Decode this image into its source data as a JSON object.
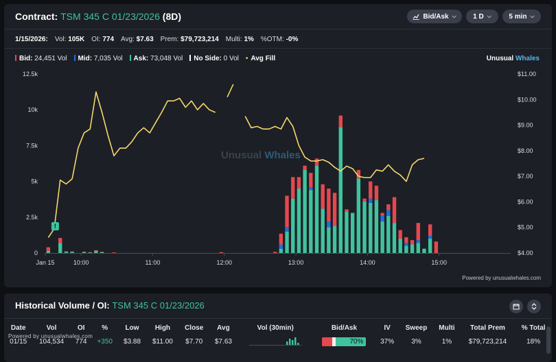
{
  "header": {
    "label": "Contract:",
    "contract": "TSM 345 C 01/23/2026",
    "dte": "(8D)",
    "controls": {
      "side": "Bid/Ask",
      "range": "1 D",
      "interval": "5 min"
    }
  },
  "stats": {
    "date": "1/15/2026:",
    "vol_label": "Vol:",
    "vol": "105K",
    "oi_label": "OI:",
    "oi": "774",
    "avg_label": "Avg:",
    "avg": "$7.63",
    "prem_label": "Prem:",
    "prem": "$79,723,214",
    "multi_label": "Multi:",
    "multi": "1%",
    "otm_label": "%OTM:",
    "otm": "-0%"
  },
  "legend": {
    "bid_label": "Bid:",
    "bid": "24,451 Vol",
    "mid_label": "Mid:",
    "mid": "7,035 Vol",
    "ask_label": "Ask:",
    "ask": "73,048 Vol",
    "noside_label": "No Side:",
    "noside": "0 Vol",
    "avgfill": "Avg Fill"
  },
  "brand": {
    "part1": "Unusual",
    "part2": "Whales",
    "watermark1": "Unusual",
    "watermark2": "Whales"
  },
  "powered_by": "Powered by unusualwhales.com",
  "colors": {
    "bid": "#e5484d",
    "mid": "#1f6fe0",
    "ask": "#3fc39e",
    "avg_fill": "#f5d76e",
    "accent": "#3fc39e"
  },
  "chart_data": {
    "type": "bar",
    "x_ticks": [
      "Jan 15",
      "10:00",
      "11:00",
      "12:00",
      "13:00",
      "14:00",
      "15:00"
    ],
    "y_left_ticks": [
      "12.5k",
      "10k",
      "7.5k",
      "5k",
      "2.5k",
      "0"
    ],
    "y_left_range": [
      0,
      12500
    ],
    "y_right_ticks": [
      "$11.00",
      "$10.00",
      "$9.00",
      "$8.00",
      "$7.00",
      "$6.00",
      "$5.00",
      "$4.00"
    ],
    "y_right_range": [
      4,
      11
    ],
    "session_start_hour": 9.5,
    "session_end_hour": 16,
    "interval_minutes": 5,
    "bars": [
      {
        "time": "09:30",
        "ask": 150,
        "mid": 0,
        "bid": 250
      },
      {
        "time": "09:40",
        "ask": 700,
        "mid": 0,
        "bid": 350
      },
      {
        "time": "09:45",
        "ask": 80,
        "mid": 0,
        "bid": 40
      },
      {
        "time": "09:50",
        "ask": 80,
        "mid": 0,
        "bid": 30
      },
      {
        "time": "10:00",
        "ask": 60,
        "mid": 0,
        "bid": 40
      },
      {
        "time": "10:05",
        "ask": 40,
        "mid": 0,
        "bid": 20
      },
      {
        "time": "10:10",
        "ask": 150,
        "mid": 0,
        "bid": 50
      },
      {
        "time": "10:15",
        "ask": 60,
        "mid": 0,
        "bid": 30
      },
      {
        "time": "10:25",
        "ask": 0,
        "mid": 0,
        "bid": 40
      },
      {
        "time": "11:55",
        "ask": 0,
        "mid": 0,
        "bid": 60
      },
      {
        "time": "12:40",
        "ask": 0,
        "mid": 0,
        "bid": 80
      },
      {
        "time": "12:45",
        "ask": 300,
        "mid": 300,
        "bid": 750
      },
      {
        "time": "12:50",
        "ask": 1500,
        "mid": 300,
        "bid": 2200
      },
      {
        "time": "12:55",
        "ask": 3800,
        "mid": 0,
        "bid": 1500
      },
      {
        "time": "13:00",
        "ask": 4500,
        "mid": 0,
        "bid": 800
      },
      {
        "time": "13:05",
        "ask": 5800,
        "mid": 0,
        "bid": 300
      },
      {
        "time": "13:10",
        "ask": 4400,
        "mid": 200,
        "bid": 1000
      },
      {
        "time": "13:15",
        "ask": 6100,
        "mid": 0,
        "bid": 500
      },
      {
        "time": "13:20",
        "ask": 3100,
        "mid": 0,
        "bid": 1700
      },
      {
        "time": "13:25",
        "ask": 1800,
        "mid": 400,
        "bid": 2300
      },
      {
        "time": "13:30",
        "ask": 1900,
        "mid": 0,
        "bid": 2300
      },
      {
        "time": "13:35",
        "ask": 8800,
        "mid": 0,
        "bid": 800
      },
      {
        "time": "13:40",
        "ask": 2900,
        "mid": 0,
        "bid": 150
      },
      {
        "time": "13:45",
        "ask": 2800,
        "mid": 0,
        "bid": 0
      },
      {
        "time": "13:50",
        "ask": 5200,
        "mid": 0,
        "bid": 600
      },
      {
        "time": "13:55",
        "ask": 3600,
        "mid": 0,
        "bid": 200
      },
      {
        "time": "14:00",
        "ask": 3500,
        "mid": 300,
        "bid": 1200
      },
      {
        "time": "14:05",
        "ask": 3700,
        "mid": 0,
        "bid": 1000
      },
      {
        "time": "14:10",
        "ask": 2200,
        "mid": 400,
        "bid": 200
      },
      {
        "time": "14:15",
        "ask": 2600,
        "mid": 400,
        "bid": 400
      },
      {
        "time": "14:20",
        "ask": 2100,
        "mid": 0,
        "bid": 1800
      },
      {
        "time": "14:25",
        "ask": 1000,
        "mid": 0,
        "bid": 600
      },
      {
        "time": "14:30",
        "ask": 500,
        "mid": 200,
        "bid": 400
      },
      {
        "time": "14:35",
        "ask": 600,
        "mid": 0,
        "bid": 300
      },
      {
        "time": "14:40",
        "ask": 700,
        "mid": 200,
        "bid": 1200
      },
      {
        "time": "14:45",
        "ask": 300,
        "mid": 0,
        "bid": 0
      },
      {
        "time": "14:50",
        "ask": 1000,
        "mid": 200,
        "bid": 800
      },
      {
        "time": "14:55",
        "ask": 0,
        "mid": 0,
        "bid": 800
      }
    ],
    "avg_fill_segments": [
      [
        {
          "time": "09:30",
          "price": 4.6
        },
        {
          "time": "09:35",
          "price": 4.95
        },
        {
          "time": "09:40",
          "price": 6.85
        },
        {
          "time": "09:45",
          "price": 6.7
        },
        {
          "time": "09:50",
          "price": 6.9
        },
        {
          "time": "09:55",
          "price": 8.1
        },
        {
          "time": "10:00",
          "price": 8.7
        },
        {
          "time": "10:05",
          "price": 8.85
        },
        {
          "time": "10:10",
          "price": 10.3
        },
        {
          "time": "10:15",
          "price": 9.5
        },
        {
          "time": "10:20",
          "price": 8.6
        },
        {
          "time": "10:25",
          "price": 7.8
        },
        {
          "time": "10:30",
          "price": 8.1
        },
        {
          "time": "10:35",
          "price": 8.1
        },
        {
          "time": "10:40",
          "price": 8.35
        },
        {
          "time": "10:45",
          "price": 8.7
        },
        {
          "time": "10:50",
          "price": 8.9
        },
        {
          "time": "10:55",
          "price": 8.7
        },
        {
          "time": "11:00",
          "price": 9.1
        },
        {
          "time": "11:05",
          "price": 9.5
        },
        {
          "time": "11:10",
          "price": 9.95
        },
        {
          "time": "11:15",
          "price": 9.95
        },
        {
          "time": "11:20",
          "price": 10.05
        },
        {
          "time": "11:25",
          "price": 9.7
        },
        {
          "time": "11:30",
          "price": 9.95
        },
        {
          "time": "11:35",
          "price": 9.6
        },
        {
          "time": "11:40",
          "price": 9.85
        },
        {
          "time": "11:45",
          "price": 9.6
        },
        {
          "time": "11:50",
          "price": 9.5
        }
      ],
      [
        {
          "time": "12:00",
          "price": 10.1
        },
        {
          "time": "12:05",
          "price": 10.6
        }
      ],
      [
        {
          "time": "12:15",
          "price": 9.35
        },
        {
          "time": "12:20",
          "price": 8.9
        },
        {
          "time": "12:25",
          "price": 8.95
        },
        {
          "time": "12:30",
          "price": 8.85
        },
        {
          "time": "12:35",
          "price": 8.85
        },
        {
          "time": "12:40",
          "price": 8.95
        },
        {
          "time": "12:45",
          "price": 8.85
        },
        {
          "time": "12:50",
          "price": 9.3
        },
        {
          "time": "12:55",
          "price": 8.95
        },
        {
          "time": "13:00",
          "price": 8.2
        },
        {
          "time": "13:05",
          "price": 7.75
        },
        {
          "time": "13:10",
          "price": 7.6
        },
        {
          "time": "13:15",
          "price": 7.6
        },
        {
          "time": "13:20",
          "price": 7.65
        },
        {
          "time": "13:25",
          "price": 7.55
        },
        {
          "time": "13:30",
          "price": 7.35
        },
        {
          "time": "13:35",
          "price": 7.2
        },
        {
          "time": "13:40",
          "price": 7.4
        },
        {
          "time": "13:45",
          "price": 7.3
        },
        {
          "time": "13:50",
          "price": 7.0
        },
        {
          "time": "13:55",
          "price": 6.95
        },
        {
          "time": "14:00",
          "price": 6.95
        },
        {
          "time": "14:05",
          "price": 7.25
        },
        {
          "time": "14:10",
          "price": 7.2
        },
        {
          "time": "14:15",
          "price": 7.45
        },
        {
          "time": "14:20",
          "price": 7.2
        },
        {
          "time": "14:25",
          "price": 7.05
        },
        {
          "time": "14:30",
          "price": 6.8
        },
        {
          "time": "14:35",
          "price": 7.45
        },
        {
          "time": "14:40",
          "price": 7.65
        },
        {
          "time": "14:45",
          "price": 7.7
        }
      ]
    ],
    "marker": {
      "time": "09:40",
      "symbol": "!"
    }
  },
  "history": {
    "title": "Historical Volume / OI:",
    "contract": "TSM 345 C 01/23/2026",
    "powered_small": "Powered by unusualwhales.com",
    "columns": [
      "Date",
      "Vol",
      "OI",
      "%",
      "Low",
      "High",
      "Close",
      "Avg",
      "Vol (30min)",
      "Bid/Ask",
      "IV",
      "Sweep",
      "Multi",
      "Total Prem",
      "% Total"
    ],
    "rows": [
      {
        "date": "01/15",
        "vol": "104,534",
        "oi": "774",
        "pct": "+350",
        "low": "$3.88",
        "high": "$11.00",
        "close": "$7.70",
        "avg": "$7.63",
        "bidask": "70%",
        "bid_frac": 0.23,
        "mid_frac": 0.07,
        "iv": "37%",
        "sweep": "3%",
        "multi": "1%",
        "total_prem": "$79,723,214",
        "pct_total": "18%"
      }
    ],
    "spark": [
      0,
      0,
      0,
      0,
      0,
      0,
      0,
      0,
      0,
      0,
      0,
      0,
      0,
      3,
      5,
      4,
      6,
      2
    ]
  }
}
